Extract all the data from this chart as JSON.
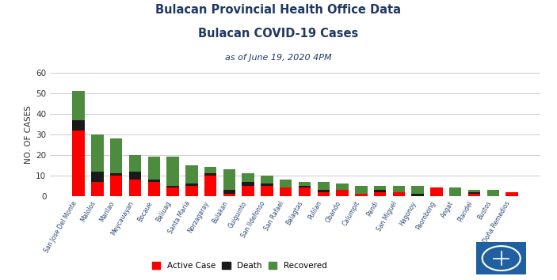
{
  "title_line1": "Bulacan Provincial Health Office Data",
  "title_line2": "Bulacan COVID-19 Cases",
  "subtitle": "as of June 19, 2020 4PM",
  "ylabel": "NO. OF CASES",
  "municipalities": [
    "San Jose Del Monte",
    "Malolos",
    "Marilao",
    "Meycauayan",
    "Bocaue",
    "Baliuag",
    "Santa Maria",
    "Norzagaray",
    "Bulakan",
    "Guiguinto",
    "San Ildefonso",
    "San Rafael",
    "Balagtas",
    "Pulilan",
    "Obando",
    "Calumpit",
    "Pandi",
    "San Miguel",
    "Hagonoy",
    "Paombong",
    "Angat",
    "Plaridel",
    "Bustos",
    "Doña Remedios"
  ],
  "active": [
    32,
    7,
    10,
    8,
    7,
    4,
    5,
    10,
    1,
    5,
    5,
    4,
    4,
    2,
    3,
    1,
    2,
    2,
    0,
    4,
    0,
    1,
    0,
    2
  ],
  "death": [
    5,
    5,
    1,
    4,
    1,
    1,
    1,
    1,
    2,
    2,
    1,
    0,
    1,
    1,
    0,
    0,
    1,
    0,
    1,
    0,
    0,
    1,
    0,
    0
  ],
  "recovered": [
    14,
    18,
    17,
    8,
    11,
    14,
    9,
    3,
    10,
    4,
    4,
    4,
    2,
    4,
    3,
    4,
    2,
    3,
    4,
    0,
    4,
    1,
    3,
    0
  ],
  "active_color": "#FF0000",
  "death_color": "#1a1a1a",
  "recovered_color": "#4d8c3f",
  "background_color": "#ffffff",
  "grid_color": "#cccccc",
  "title_color": "#1f3864",
  "ylim": [
    0,
    60
  ],
  "yticks": [
    0,
    10,
    20,
    30,
    40,
    50,
    60
  ]
}
